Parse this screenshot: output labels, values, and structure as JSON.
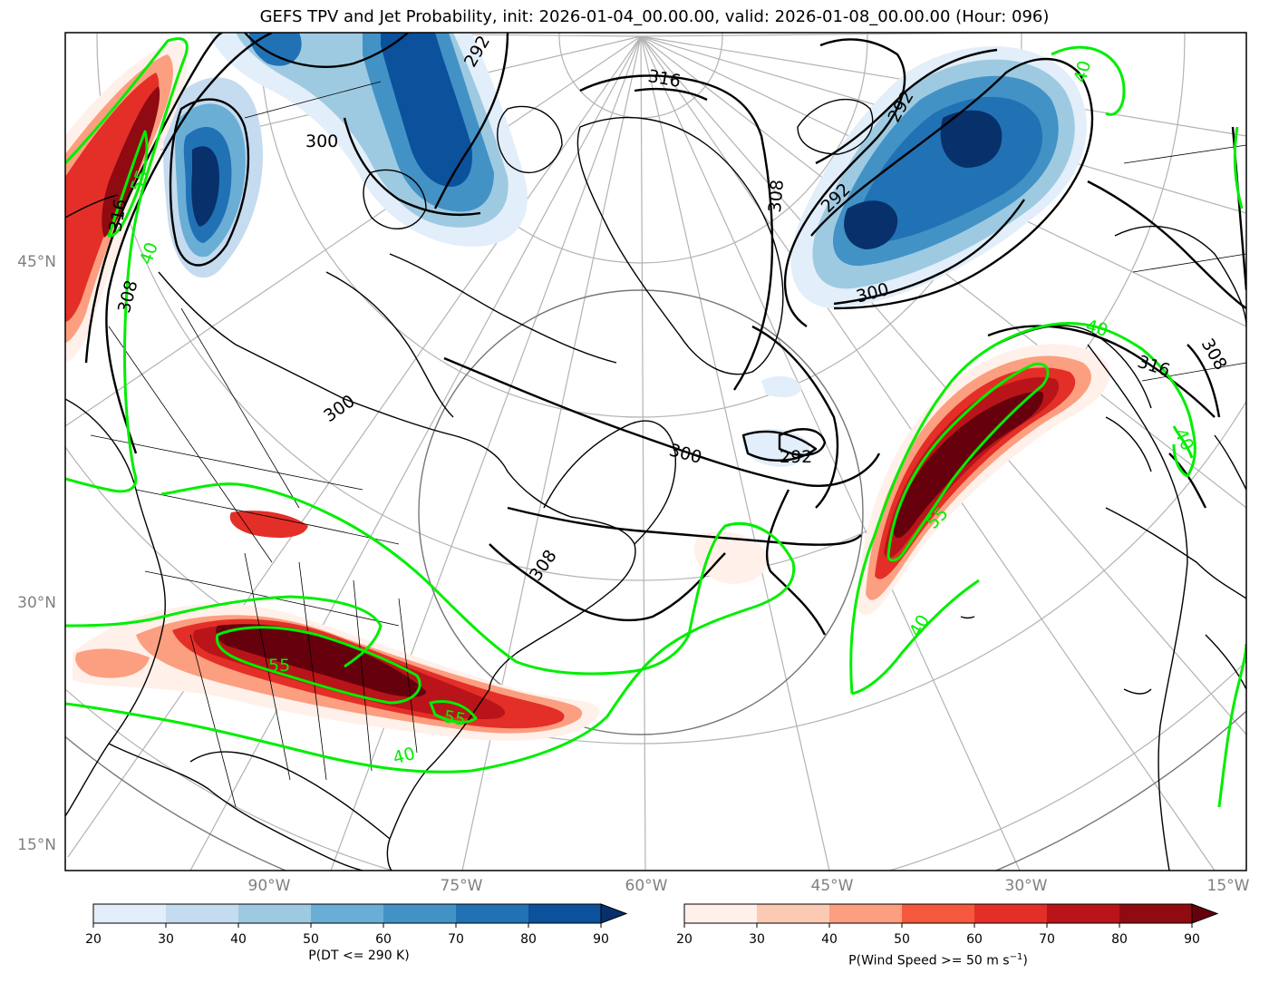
{
  "title": "GEFS TPV and Jet Probability, init: 2026-01-04_00.00.00, valid: 2026-01-08_00.00.00 (Hour: 096)",
  "lat_labels": [
    "45°N",
    "30°N",
    "15°N"
  ],
  "lon_labels": [
    "90°W",
    "75°W",
    "60°W",
    "45°W",
    "30°W",
    "15°W"
  ],
  "theta_contour_labels": [
    "292",
    "292",
    "292",
    "292",
    "300",
    "300",
    "300",
    "300",
    "308",
    "308",
    "308",
    "308",
    "316",
    "316",
    "316"
  ],
  "jet_contour_labels": [
    "55",
    "55",
    "55",
    "55",
    "40",
    "40",
    "40",
    "40",
    "40",
    "40"
  ],
  "colorbar_blue": {
    "label": "P(DT <= 290 K)",
    "ticks": [
      "20",
      "30",
      "40",
      "50",
      "60",
      "70",
      "80",
      "90"
    ],
    "colors": [
      "#e2eef9",
      "#c5dbef",
      "#9ecae1",
      "#6aaed6",
      "#4292c6",
      "#2171b5",
      "#0b519c",
      "#08306b"
    ]
  },
  "colorbar_red": {
    "label": "P(Wind Speed >= 50 m s",
    "label_sup": "−1",
    "label_end": ")",
    "ticks": [
      "20",
      "30",
      "40",
      "50",
      "60",
      "70",
      "80",
      "90"
    ],
    "colors": [
      "#fff0ea",
      "#fcc9b3",
      "#fc9e80",
      "#f6583e",
      "#e32f27",
      "#b81419",
      "#900a12",
      "#67000d"
    ]
  },
  "colors": {
    "jet_contour": "#00ee00",
    "theta_contour": "#000000",
    "graticule": "#b3b3b3"
  }
}
